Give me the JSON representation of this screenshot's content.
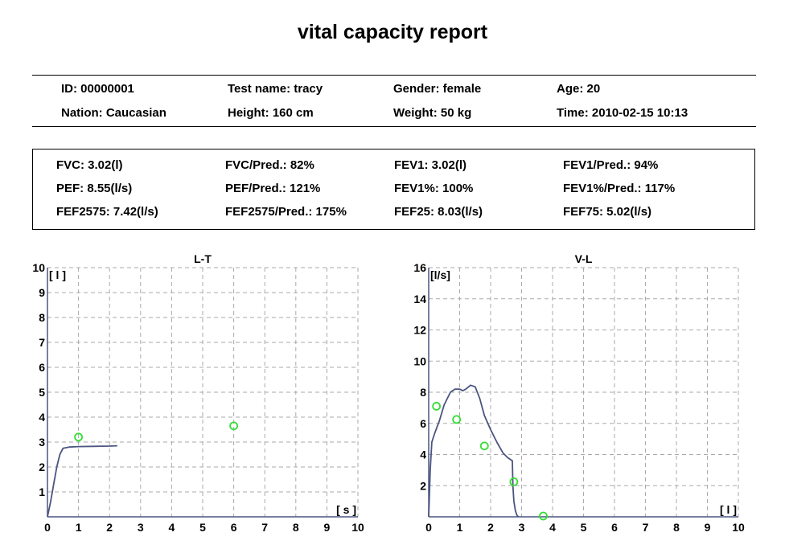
{
  "report": {
    "title": "vital capacity report"
  },
  "patient": {
    "rows": [
      [
        "ID: 00000001",
        "Test name: tracy",
        "Gender: female",
        "Age: 20"
      ],
      [
        "Nation: Caucasian",
        "Height: 160 cm",
        "Weight: 50 kg",
        "Time: 2010-02-15 10:13"
      ]
    ]
  },
  "metrics": {
    "rows": [
      [
        "FVC: 3.02(l)",
        "FVC/Pred.: 82%",
        "FEV1: 3.02(l)",
        "FEV1/Pred.: 94%"
      ],
      [
        "PEF: 8.55(l/s)",
        "PEF/Pred.: 121%",
        "FEV1%: 100%",
        "FEV1%/Pred.: 117%"
      ],
      [
        "FEF2575: 7.42(l/s)",
        "FEF2575/Pred.: 175%",
        "FEF25: 8.03(l/s)",
        "FEF75: 5.02(l/s)"
      ]
    ]
  },
  "colors": {
    "curve": "#4a5580",
    "predicted_marker": "#33dd33",
    "grid": "#aaaaaa",
    "axis": "#4a5580"
  },
  "chart_data": [
    {
      "type": "line",
      "title": "L-T",
      "xlabel": "[ s ]",
      "ylabel": "[ l ]",
      "xlim": [
        0,
        10
      ],
      "ylim": [
        0,
        10
      ],
      "x_ticks": [
        0,
        1,
        2,
        3,
        4,
        5,
        6,
        7,
        8,
        9,
        10
      ],
      "y_ticks": [
        1,
        2,
        3,
        4,
        5,
        6,
        7,
        8,
        9,
        10
      ],
      "grid": true,
      "series": [
        {
          "x": [
            0,
            0.1,
            0.2,
            0.3,
            0.4,
            0.5,
            0.7,
            1.0,
            1.5,
            2.0,
            2.25
          ],
          "y": [
            0,
            0.6,
            1.3,
            2.0,
            2.5,
            2.75,
            2.8,
            2.82,
            2.83,
            2.84,
            2.85
          ]
        }
      ],
      "markers": {
        "x": [
          1,
          6
        ],
        "y": [
          3.2,
          3.65
        ]
      }
    },
    {
      "type": "line",
      "title": "V-L",
      "xlabel": "[ l ]",
      "ylabel": "[l/s]",
      "xlim": [
        0,
        10
      ],
      "ylim": [
        0,
        16
      ],
      "x_ticks": [
        0,
        1,
        2,
        3,
        4,
        5,
        6,
        7,
        8,
        9,
        10
      ],
      "y_ticks": [
        2,
        4,
        6,
        8,
        10,
        12,
        14,
        16
      ],
      "grid": true,
      "series": [
        {
          "x": [
            0,
            0.05,
            0.1,
            0.2,
            0.35,
            0.5,
            0.7,
            0.85,
            1.0,
            1.1,
            1.2,
            1.35,
            1.5,
            1.65,
            1.8,
            2.0,
            2.2,
            2.4,
            2.55,
            2.7,
            2.72,
            2.75,
            2.8,
            2.85,
            2.9
          ],
          "y": [
            0,
            3.0,
            4.8,
            5.4,
            6.2,
            7.2,
            8.0,
            8.2,
            8.2,
            8.1,
            8.2,
            8.45,
            8.35,
            7.6,
            6.5,
            5.6,
            4.8,
            4.1,
            3.8,
            3.6,
            2.0,
            1.0,
            0.4,
            0.1,
            0
          ]
        }
      ],
      "markers": {
        "x": [
          0.25,
          0.9,
          1.8,
          2.75,
          3.7
        ],
        "y": [
          7.1,
          6.25,
          4.55,
          2.25,
          0.05
        ]
      }
    }
  ]
}
